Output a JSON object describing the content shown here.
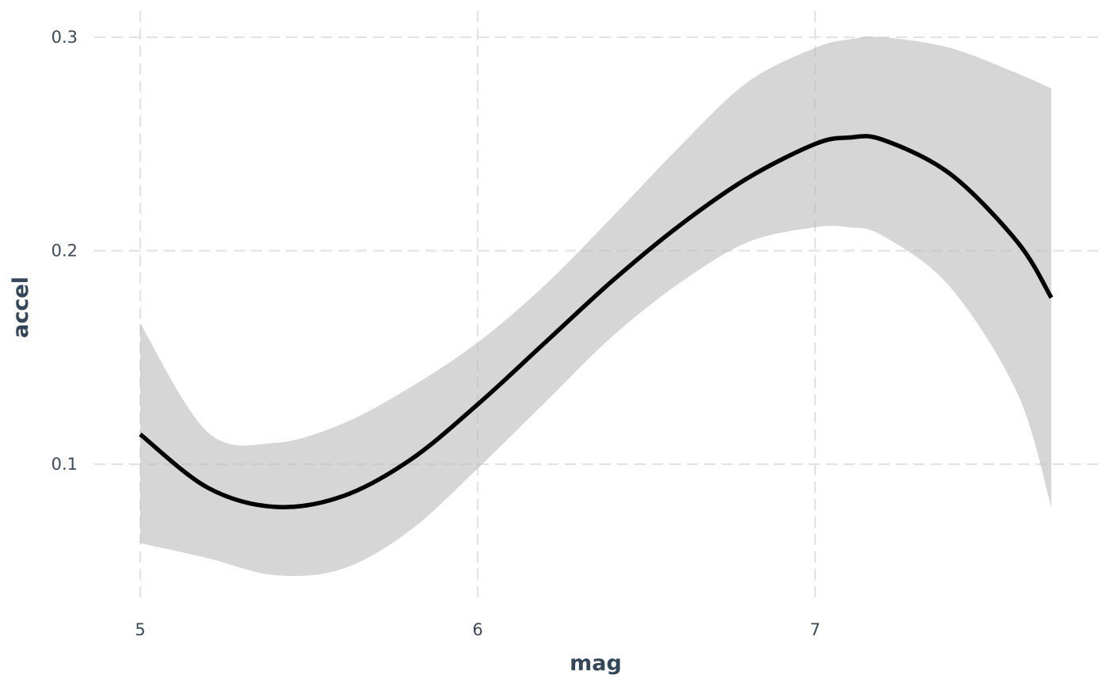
{
  "chart_data": {
    "type": "line",
    "title": "",
    "xlabel": "mag",
    "ylabel": "accel",
    "xlim": [
      4.86,
      7.9
    ],
    "ylim": [
      0.03,
      0.3
    ],
    "grid": true,
    "x_ticks": [
      {
        "value": 5,
        "label": "5"
      },
      {
        "value": 6,
        "label": "6"
      },
      {
        "value": 7,
        "label": "7"
      }
    ],
    "y_ticks": [
      {
        "value": 0.1,
        "label": "0.1"
      },
      {
        "value": 0.2,
        "label": "0.2"
      },
      {
        "value": 0.3,
        "label": "0.3"
      }
    ],
    "colors": {
      "line": "#000000",
      "band": "#bdbdbd",
      "grid": "#e3e3e3",
      "text": "#3d4a5a"
    },
    "series": [
      {
        "x": [
          5.0,
          5.2,
          5.4,
          5.6,
          5.8,
          6.0,
          6.2,
          6.4,
          6.6,
          6.8,
          7.0,
          7.1,
          7.2,
          7.4,
          7.6,
          7.7
        ],
        "y": [
          0.114,
          0.089,
          0.08,
          0.085,
          0.102,
          0.128,
          0.157,
          0.186,
          0.212,
          0.234,
          0.25,
          0.253,
          0.252,
          0.236,
          0.204,
          0.178
        ],
        "lower": [
          0.063,
          0.056,
          0.048,
          0.051,
          0.069,
          0.098,
          0.129,
          0.16,
          0.185,
          0.204,
          0.211,
          0.211,
          0.207,
          0.183,
          0.133,
          0.08
        ],
        "upper": [
          0.166,
          0.115,
          0.11,
          0.119,
          0.136,
          0.157,
          0.184,
          0.216,
          0.249,
          0.279,
          0.295,
          0.299,
          0.3,
          0.295,
          0.283,
          0.276
        ]
      }
    ]
  }
}
